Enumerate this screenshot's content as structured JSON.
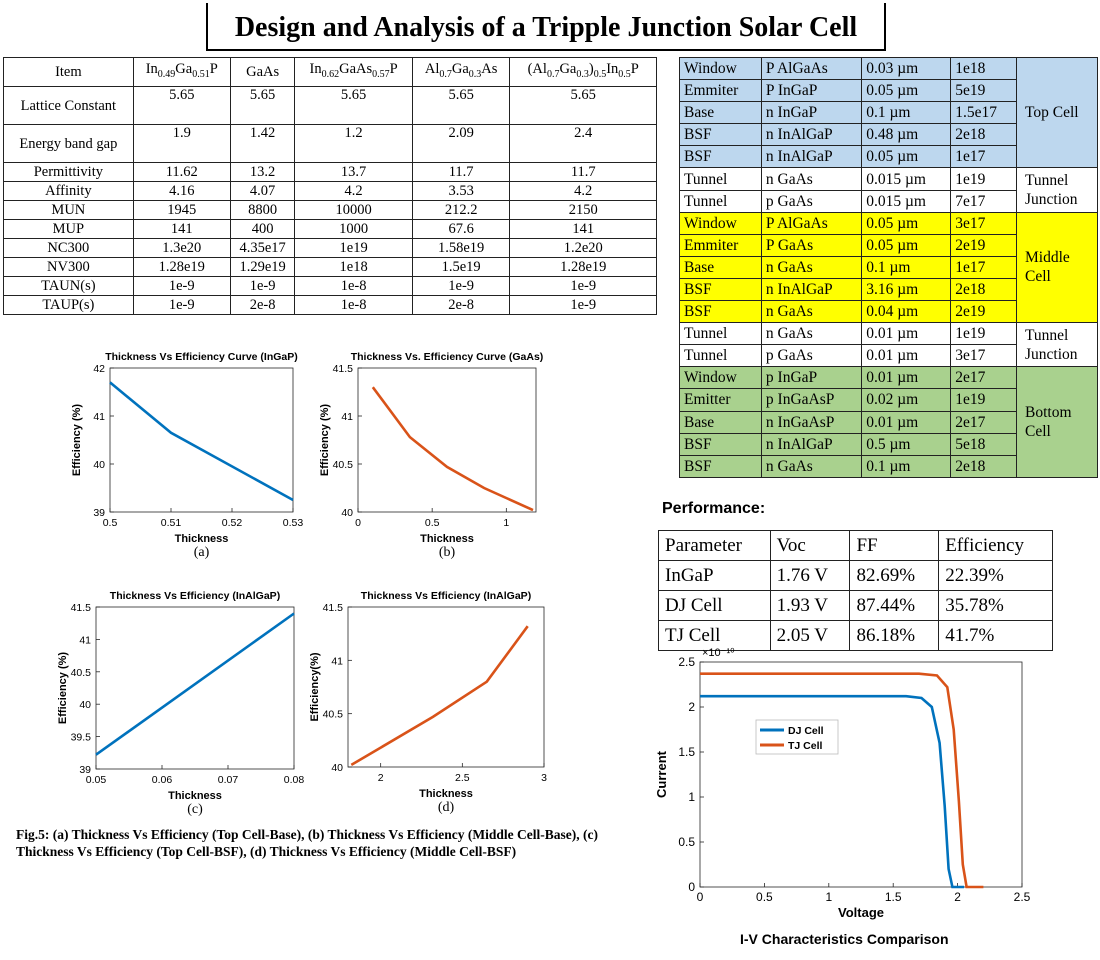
{
  "title": "Design and Analysis of a Tripple Junction Solar Cell",
  "materials": {
    "headers": [
      "Item",
      "In0.49Ga0.51P",
      "GaAs",
      "In0.62GaAs0.57P",
      "Al0.7Ga0.3As",
      "(Al0.7Ga0.3)0.5In0.5P"
    ],
    "rows": [
      {
        "label": "Lattice Constant",
        "values": [
          "5.65",
          "5.65",
          "5.65",
          "5.65",
          "5.65"
        ]
      },
      {
        "label": "Energy band gap",
        "values": [
          "1.9",
          "1.42",
          "1.2",
          "2.09",
          "2.4"
        ]
      },
      {
        "label": "Permittivity",
        "values": [
          "11.62",
          "13.2",
          "13.7",
          "11.7",
          "11.7"
        ]
      },
      {
        "label": "Affinity",
        "values": [
          "4.16",
          "4.07",
          "4.2",
          "3.53",
          "4.2"
        ]
      },
      {
        "label": "MUN",
        "values": [
          "1945",
          "8800",
          "10000",
          "212.2",
          "2150"
        ]
      },
      {
        "label": "MUP",
        "values": [
          "141",
          "400",
          "1000",
          "67.6",
          "141"
        ]
      },
      {
        "label": "NC300",
        "values": [
          "1.3e20",
          "4.35e17",
          "1e19",
          "1.58e19",
          "1.2e20"
        ]
      },
      {
        "label": "NV300",
        "values": [
          "1.28e19",
          "1.29e19",
          "1e18",
          "1.5e19",
          "1.28e19"
        ]
      },
      {
        "label": "TAUN(s)",
        "values": [
          "1e-9",
          "1e-9",
          "1e-8",
          "1e-9",
          "1e-9"
        ]
      },
      {
        "label": "TAUP(s)",
        "values": [
          "1e-9",
          "2e-8",
          "1e-8",
          "2e-8",
          "1e-9"
        ]
      }
    ]
  },
  "layers": {
    "groups": [
      {
        "name": "Top Cell",
        "color": "#bdd7ee",
        "rows": [
          [
            "Window",
            "P AlGaAs",
            "0.03 µm",
            "1e18"
          ],
          [
            "Emmiter",
            "P InGaP",
            "0.05 µm",
            "5e19"
          ],
          [
            "Base",
            "n InGaP",
            "0.1 µm",
            "1.5e17"
          ],
          [
            "BSF",
            "n InAlGaP",
            "0.48 µm",
            "2e18"
          ],
          [
            "BSF",
            "n InAlGaP",
            "0.05 µm",
            "1e17"
          ]
        ]
      },
      {
        "name": "Tunnel Junction",
        "color": "#ffffff",
        "rows": [
          [
            "Tunnel",
            "n GaAs",
            "0.015 µm",
            "1e19"
          ],
          [
            "Tunnel",
            "p GaAs",
            "0.015 µm",
            "7e17"
          ]
        ]
      },
      {
        "name": "Middle Cell",
        "color": "#ffff00",
        "rows": [
          [
            "Window",
            "P AlGaAs",
            "0.05 µm",
            "3e17"
          ],
          [
            "Emmiter",
            "P GaAs",
            "0.05 µm",
            "2e19"
          ],
          [
            "Base",
            "n GaAs",
            "0.1 µm",
            "1e17"
          ],
          [
            "BSF",
            "n InAlGaP",
            "3.16 µm",
            "2e18"
          ],
          [
            "BSF",
            "n GaAs",
            "0.04 µm",
            "2e19"
          ]
        ]
      },
      {
        "name": "Tunnel Junction",
        "color": "#ffffff",
        "rows": [
          [
            "Tunnel",
            "n GaAs",
            "0.01 µm",
            "1e19"
          ],
          [
            "Tunnel",
            "p GaAs",
            "0.01 µm",
            "3e17"
          ]
        ]
      },
      {
        "name": "Bottom Cell",
        "color": "#a9d18e",
        "rows": [
          [
            "Window",
            "p InGaP",
            "0.01 µm",
            "2e17"
          ],
          [
            "Emitter",
            "p InGaAsP",
            "0.02 µm",
            "1e19"
          ],
          [
            "Base",
            "n InGaAsP",
            "0.01 µm",
            "2e17"
          ],
          [
            "BSF",
            "n InAlGaP",
            "0.5 µm",
            "5e18"
          ],
          [
            "BSF",
            "n GaAs",
            "0.1 µm",
            "2e18"
          ]
        ]
      }
    ]
  },
  "performance": {
    "title": "Performance:",
    "headers": [
      "Parameter",
      "Voc",
      "FF",
      "Efficiency"
    ],
    "rows": [
      [
        "InGaP",
        "1.76 V",
        "82.69%",
        "22.39%"
      ],
      [
        "DJ Cell",
        "1.93 V",
        "87.44%",
        "35.78%"
      ],
      [
        "TJ Cell",
        "2.05 V",
        "86.18%",
        "41.7%"
      ]
    ]
  },
  "fig_caption": "Fig.5: (a) Thickness Vs Efficiency (Top Cell-Base), (b) Thickness Vs Efficiency (Middle Cell-Base), (c) Thickness Vs Efficiency (Top Cell-BSF), (d) Thickness Vs Efficiency (Middle Cell-BSF)",
  "iv_caption": "I-V Characteristics Comparison",
  "chart_data": [
    {
      "type": "line",
      "label": "(a)",
      "title": "Thickness Vs Efficiency Curve (InGaP)",
      "xlabel": "Thickness",
      "ylabel": "Efficiency (%)",
      "xlim": [
        0.5,
        0.53
      ],
      "ylim": [
        39,
        42
      ],
      "xticks": [
        "0.5",
        "0.51",
        "0.52",
        "0.53"
      ],
      "yticks": [
        "39",
        "40",
        "41",
        "42"
      ],
      "color": "#0072bd",
      "series": [
        {
          "x": [
            0.5,
            0.51,
            0.53
          ],
          "y": [
            41.7,
            40.65,
            39.25
          ]
        }
      ]
    },
    {
      "type": "line",
      "label": "(b)",
      "title": "Thickness Vs. Efficiency Curve (GaAs)",
      "xlabel": "Thickness",
      "ylabel": "Efficiency (%)",
      "xlim": [
        0,
        1.2
      ],
      "ylim": [
        40,
        41.5
      ],
      "xticks": [
        "0",
        "0.5",
        "1"
      ],
      "yticks": [
        "40",
        "40.5",
        "41",
        "41.5"
      ],
      "color": "#d95319",
      "series": [
        {
          "x": [
            0.1,
            0.35,
            0.6,
            0.85,
            1.18
          ],
          "y": [
            41.3,
            40.78,
            40.47,
            40.25,
            40.02
          ]
        }
      ]
    },
    {
      "type": "line",
      "label": "(c)",
      "title": "Thickness Vs Efficiency (InAlGaP)",
      "xlabel": "Thickness",
      "ylabel": "Efficiency (%)",
      "xlim": [
        0.05,
        0.08
      ],
      "ylim": [
        39,
        41.5
      ],
      "xticks": [
        "0.05",
        "0.06",
        "0.07",
        "0.08"
      ],
      "yticks": [
        "39",
        "39.5",
        "40",
        "40.5",
        "41",
        "41.5"
      ],
      "color": "#0072bd",
      "series": [
        {
          "x": [
            0.05,
            0.08
          ],
          "y": [
            39.22,
            41.4
          ]
        }
      ]
    },
    {
      "type": "line",
      "label": "(d)",
      "title": "Thickness Vs Efficiency (InAlGaP)",
      "xlabel": "Thickness",
      "ylabel": "Efficiency(%)",
      "xlim": [
        1.8,
        3
      ],
      "ylim": [
        40,
        41.5
      ],
      "xticks": [
        "2",
        "2.5",
        "3"
      ],
      "yticks": [
        "40",
        "40.5",
        "41",
        "41.5"
      ],
      "color": "#d95319",
      "series": [
        {
          "x": [
            1.82,
            2.32,
            2.65,
            2.9
          ],
          "y": [
            40.02,
            40.47,
            40.8,
            41.32
          ]
        }
      ]
    },
    {
      "type": "line",
      "title": "",
      "xlabel": "Voltage",
      "ylabel": "Current",
      "multiplier": "×10⁻¹⁰",
      "xlim": [
        0,
        2.5
      ],
      "ylim": [
        0,
        2.5
      ],
      "xticks": [
        "0",
        "0.5",
        "1",
        "1.5",
        "2",
        "2.5"
      ],
      "yticks": [
        "0",
        "0.5",
        "1",
        "1.5",
        "2",
        "2.5"
      ],
      "legend_position": "upper-left",
      "series": [
        {
          "name": "DJ Cell",
          "color": "#0072bd",
          "x": [
            0,
            1.6,
            1.72,
            1.8,
            1.86,
            1.9,
            1.93,
            1.96,
            2.05
          ],
          "y": [
            2.12,
            2.12,
            2.1,
            2.0,
            1.6,
            0.9,
            0.2,
            0.0,
            0.0
          ]
        },
        {
          "name": "TJ Cell",
          "color": "#d95319",
          "x": [
            0,
            1.7,
            1.84,
            1.92,
            1.97,
            2.01,
            2.04,
            2.07,
            2.2
          ],
          "y": [
            2.37,
            2.37,
            2.35,
            2.22,
            1.75,
            0.95,
            0.25,
            0.0,
            0.0
          ]
        }
      ]
    }
  ]
}
